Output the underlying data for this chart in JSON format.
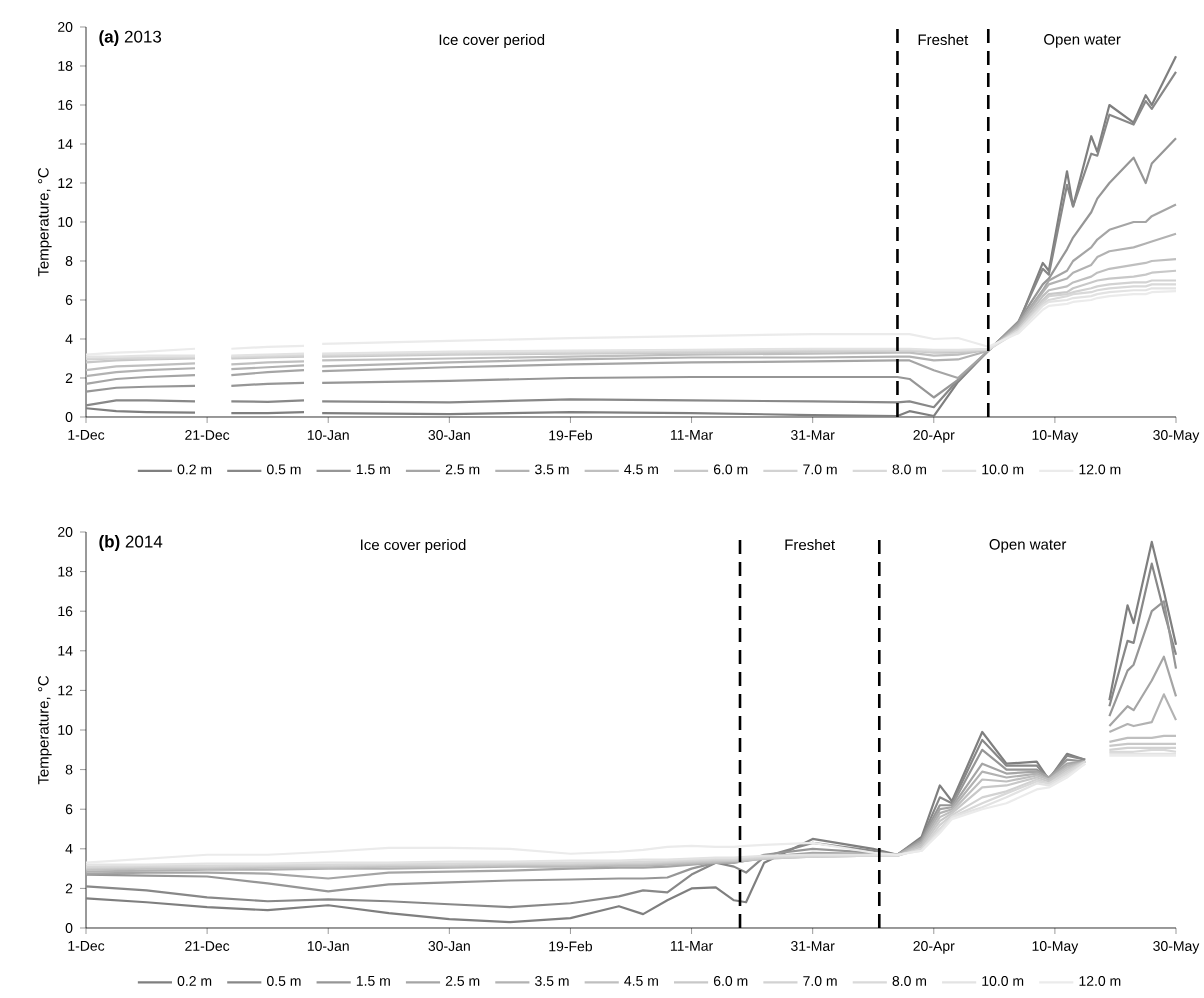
{
  "chart_data": [
    {
      "type": "line",
      "title": "**(a)** 2013",
      "ylabel": "Temperature, °C",
      "legend": "bottom",
      "xlim": [
        "2012-12-01",
        "2013-05-30"
      ],
      "xticks": [
        {
          "value": "2012-12-01",
          "label": "1-Dec"
        },
        {
          "value": "2012-12-21",
          "label": "21-Dec"
        },
        {
          "value": "2013-01-10",
          "label": "10-Jan"
        },
        {
          "value": "2013-01-30",
          "label": "30-Jan"
        },
        {
          "value": "2013-02-19",
          "label": "19-Feb"
        },
        {
          "value": "2013-03-11",
          "label": "11-Mar"
        },
        {
          "value": "2013-03-31",
          "label": "31-Mar"
        },
        {
          "value": "2013-04-20",
          "label": "20-Apr"
        },
        {
          "value": "2013-05-10",
          "label": "10-May"
        },
        {
          "value": "2013-05-30",
          "label": "30-May"
        }
      ],
      "ylim": [
        0,
        20
      ],
      "yticks": [
        0,
        2,
        4,
        6,
        8,
        10,
        12,
        14,
        16,
        18,
        20
      ],
      "x": [
        "2012-12-01",
        "2012-12-06",
        "2012-12-11",
        "2012-12-19",
        "2012-12-22",
        "2012-12-25",
        "2012-12-31",
        "2013-01-06",
        "2013-01-08",
        "2013-01-09",
        "2013-01-30",
        "2013-02-19",
        "2013-03-11",
        "2013-03-31",
        "2013-04-14",
        "2013-04-16",
        "2013-04-20",
        "2013-04-24",
        "2013-04-29",
        "2013-05-04",
        "2013-05-08",
        "2013-05-09",
        "2013-05-12",
        "2013-05-13",
        "2013-05-16",
        "2013-05-17",
        "2013-05-19",
        "2013-05-23",
        "2013-05-25",
        "2013-05-26",
        "2013-05-30"
      ],
      "series": [
        {
          "name": "0.2 m",
          "color": "#7f7f7f",
          "values": [
            0.45,
            0.3,
            0.25,
            0.22,
            null,
            0.2,
            0.2,
            0.25,
            null,
            0.2,
            0.15,
            0.25,
            0.2,
            0.1,
            0.05,
            0.3,
            0.05,
            1.8,
            3.4,
            4.8,
            7.9,
            7.5,
            12.6,
            10.8,
            14.4,
            13.6,
            16.0,
            15.1,
            16.5,
            16.0,
            18.5
          ]
        },
        {
          "name": "0.5 m",
          "color": "#888888",
          "values": [
            0.6,
            0.85,
            0.85,
            0.8,
            null,
            0.8,
            0.78,
            0.85,
            null,
            0.8,
            0.75,
            0.9,
            0.85,
            0.8,
            0.75,
            0.8,
            0.5,
            1.9,
            3.4,
            4.9,
            7.6,
            7.3,
            11.9,
            10.8,
            13.5,
            13.4,
            15.5,
            15.0,
            16.2,
            15.8,
            17.7
          ]
        },
        {
          "name": "1.5 m",
          "color": "#969696",
          "values": [
            1.3,
            1.5,
            1.55,
            1.6,
            null,
            1.6,
            1.7,
            1.75,
            null,
            1.75,
            1.85,
            2.0,
            2.05,
            2.05,
            2.05,
            1.95,
            1.0,
            1.9,
            3.4,
            4.9,
            6.8,
            7.1,
            8.6,
            9.2,
            10.5,
            11.2,
            12.0,
            13.3,
            12.0,
            13.0,
            14.3
          ]
        },
        {
          "name": "2.5 m",
          "color": "#a5a5a5",
          "values": [
            1.7,
            1.95,
            2.05,
            2.15,
            null,
            2.15,
            2.3,
            2.4,
            null,
            2.35,
            2.55,
            2.7,
            2.8,
            2.85,
            2.9,
            2.9,
            2.4,
            2.0,
            3.4,
            4.8,
            6.5,
            7.0,
            7.5,
            8.0,
            8.7,
            9.1,
            9.6,
            10.0,
            10.0,
            10.3,
            10.9
          ]
        },
        {
          "name": "3.5 m",
          "color": "#b2b2b2",
          "values": [
            2.1,
            2.3,
            2.4,
            2.5,
            null,
            2.45,
            2.55,
            2.65,
            null,
            2.6,
            2.8,
            2.95,
            3.05,
            3.05,
            3.1,
            3.1,
            2.9,
            2.95,
            3.4,
            4.7,
            6.4,
            6.8,
            7.1,
            7.4,
            7.8,
            8.2,
            8.5,
            8.7,
            8.9,
            9.0,
            9.4
          ]
        },
        {
          "name": "4.5 m",
          "color": "#bfbfbf",
          "values": [
            2.4,
            2.6,
            2.65,
            2.75,
            null,
            2.7,
            2.8,
            2.85,
            null,
            2.9,
            3.0,
            3.1,
            3.2,
            3.25,
            3.3,
            3.3,
            3.15,
            3.2,
            3.45,
            4.6,
            6.2,
            6.5,
            6.7,
            6.9,
            7.2,
            7.4,
            7.6,
            7.8,
            7.9,
            8.0,
            8.1
          ]
        },
        {
          "name": "6.0 m",
          "color": "#c8c8c8",
          "values": [
            2.8,
            2.9,
            2.95,
            3.0,
            null,
            3.0,
            3.05,
            3.1,
            null,
            3.1,
            3.2,
            3.25,
            3.3,
            3.35,
            3.4,
            3.4,
            3.3,
            3.3,
            3.45,
            4.5,
            6.0,
            6.3,
            6.4,
            6.6,
            6.9,
            7.0,
            7.1,
            7.2,
            7.3,
            7.4,
            7.5
          ]
        },
        {
          "name": "7.0 m",
          "color": "#d2d2d2",
          "values": [
            2.95,
            3.0,
            3.0,
            3.05,
            null,
            3.05,
            3.1,
            3.15,
            null,
            3.15,
            3.25,
            3.3,
            3.35,
            3.4,
            3.4,
            3.4,
            3.35,
            3.4,
            3.45,
            4.5,
            5.9,
            6.2,
            6.3,
            6.4,
            6.6,
            6.7,
            6.8,
            6.9,
            6.9,
            7.0,
            7.0
          ]
        },
        {
          "name": "8.0 m",
          "color": "#d9d9d9",
          "values": [
            3.0,
            3.05,
            3.05,
            3.1,
            null,
            3.1,
            3.15,
            3.2,
            null,
            3.2,
            3.3,
            3.35,
            3.4,
            3.45,
            3.45,
            3.45,
            3.4,
            3.4,
            3.45,
            4.4,
            5.8,
            6.0,
            6.2,
            6.3,
            6.4,
            6.5,
            6.6,
            6.7,
            6.7,
            6.8,
            6.8
          ]
        },
        {
          "name": "10.0 m",
          "color": "#e3e3e3",
          "values": [
            3.1,
            3.1,
            3.15,
            3.15,
            null,
            3.15,
            3.2,
            3.25,
            null,
            3.25,
            3.35,
            3.4,
            3.45,
            3.5,
            3.5,
            3.5,
            3.45,
            3.45,
            3.5,
            4.4,
            5.7,
            5.9,
            6.0,
            6.1,
            6.2,
            6.3,
            6.4,
            6.5,
            6.5,
            6.6,
            6.6
          ]
        },
        {
          "name": "12.0 m",
          "color": "#ebebeb",
          "values": [
            3.2,
            3.3,
            3.35,
            3.5,
            null,
            3.5,
            3.6,
            3.65,
            null,
            3.75,
            3.9,
            4.05,
            4.15,
            4.25,
            4.25,
            4.25,
            4.0,
            4.05,
            3.6,
            4.3,
            5.5,
            5.7,
            5.8,
            5.9,
            6.0,
            6.1,
            6.2,
            6.3,
            6.3,
            6.4,
            6.45
          ]
        }
      ],
      "ref_lines": [
        {
          "axis": "x",
          "value": "2013-04-14",
          "color": "#000000",
          "line_style": "dashed"
        },
        {
          "axis": "x",
          "value": "2013-04-29",
          "color": "#000000",
          "line_style": "dashed"
        }
      ],
      "annotations": [
        "Ice cover period",
        "Freshet",
        "Open water"
      ]
    },
    {
      "type": "line",
      "title": "**(b)** 2014",
      "ylabel": "Temperature, °C",
      "legend": "bottom",
      "xlim": [
        "2013-12-01",
        "2014-05-30"
      ],
      "xticks": [
        {
          "value": "2013-12-01",
          "label": "1-Dec"
        },
        {
          "value": "2013-12-21",
          "label": "21-Dec"
        },
        {
          "value": "2014-01-10",
          "label": "10-Jan"
        },
        {
          "value": "2014-01-30",
          "label": "30-Jan"
        },
        {
          "value": "2014-02-19",
          "label": "19-Feb"
        },
        {
          "value": "2014-03-11",
          "label": "11-Mar"
        },
        {
          "value": "2014-03-31",
          "label": "31-Mar"
        },
        {
          "value": "2014-04-20",
          "label": "20-Apr"
        },
        {
          "value": "2014-05-10",
          "label": "10-May"
        },
        {
          "value": "2014-05-30",
          "label": "30-May"
        }
      ],
      "ylim": [
        0,
        20
      ],
      "yticks": [
        0,
        2,
        4,
        6,
        8,
        10,
        12,
        14,
        16,
        18,
        20
      ],
      "x": [
        "2013-12-01",
        "2013-12-11",
        "2013-12-21",
        "2013-12-31",
        "2014-01-10",
        "2014-01-20",
        "2014-01-30",
        "2014-02-09",
        "2014-02-19",
        "2014-02-27",
        "2014-03-03",
        "2014-03-07",
        "2014-03-11",
        "2014-03-15",
        "2014-03-18",
        "2014-03-20",
        "2014-03-23",
        "2014-03-31",
        "2014-04-10",
        "2014-04-14",
        "2014-04-18",
        "2014-04-21",
        "2014-04-23",
        "2014-04-28",
        "2014-05-02",
        "2014-05-07",
        "2014-05-09",
        "2014-05-12",
        "2014-05-15",
        "2014-05-17",
        "2014-05-19",
        "2014-05-22",
        "2014-05-23",
        "2014-05-26",
        "2014-05-28",
        "2014-05-30"
      ],
      "series": [
        {
          "name": "0.2 m",
          "color": "#7f7f7f",
          "values": [
            1.5,
            1.3,
            1.05,
            0.9,
            1.15,
            0.75,
            0.45,
            0.3,
            0.5,
            1.1,
            0.7,
            1.4,
            2.0,
            2.05,
            1.4,
            1.3,
            3.3,
            4.5,
            4.0,
            3.7,
            4.6,
            7.2,
            6.4,
            9.9,
            8.3,
            8.4,
            7.5,
            8.8,
            8.5,
            null,
            11.5,
            16.3,
            15.4,
            19.5,
            17.0,
            14.3
          ]
        },
        {
          "name": "0.5 m",
          "color": "#888888",
          "values": [
            2.1,
            1.9,
            1.55,
            1.35,
            1.45,
            1.35,
            1.2,
            1.05,
            1.25,
            1.6,
            1.9,
            1.8,
            2.7,
            3.3,
            3.1,
            2.8,
            3.6,
            4.3,
            3.9,
            3.7,
            4.5,
            6.6,
            6.3,
            9.5,
            8.2,
            8.2,
            7.5,
            8.7,
            8.5,
            null,
            11.2,
            14.5,
            14.4,
            18.4,
            16.0,
            13.8
          ]
        },
        {
          "name": "1.5 m",
          "color": "#969696",
          "values": [
            2.7,
            2.65,
            2.6,
            2.25,
            1.85,
            2.2,
            2.3,
            2.4,
            2.45,
            2.5,
            2.5,
            2.55,
            3.0,
            3.3,
            3.3,
            3.4,
            3.7,
            4.0,
            3.8,
            3.7,
            4.5,
            6.2,
            6.2,
            9.0,
            8.0,
            8.0,
            7.6,
            8.5,
            8.4,
            null,
            10.7,
            13.0,
            13.3,
            16.0,
            16.5,
            13.1
          ]
        },
        {
          "name": "2.5 m",
          "color": "#a5a5a5",
          "values": [
            2.75,
            2.8,
            2.8,
            2.75,
            2.5,
            2.8,
            2.85,
            2.9,
            3.0,
            3.05,
            3.05,
            3.1,
            3.2,
            3.3,
            3.3,
            3.4,
            3.6,
            3.8,
            3.75,
            3.7,
            4.4,
            6.0,
            6.1,
            8.3,
            7.8,
            7.9,
            7.6,
            8.3,
            8.4,
            null,
            10.2,
            11.2,
            11.0,
            12.5,
            13.7,
            11.7
          ]
        },
        {
          "name": "3.5 m",
          "color": "#b2b2b2",
          "values": [
            2.85,
            2.9,
            2.95,
            2.95,
            3.0,
            3.0,
            3.05,
            3.1,
            3.1,
            3.15,
            3.15,
            3.2,
            3.25,
            3.3,
            3.35,
            3.4,
            3.5,
            3.7,
            3.7,
            3.7,
            4.3,
            5.8,
            6.0,
            7.9,
            7.6,
            7.8,
            7.5,
            8.2,
            8.4,
            null,
            9.9,
            10.3,
            10.2,
            10.4,
            11.8,
            10.5
          ]
        },
        {
          "name": "4.5 m",
          "color": "#bfbfbf",
          "values": [
            2.95,
            3.0,
            3.0,
            3.05,
            3.05,
            3.1,
            3.1,
            3.15,
            3.15,
            3.2,
            3.2,
            3.25,
            3.3,
            3.35,
            3.4,
            3.4,
            3.5,
            3.6,
            3.65,
            3.65,
            4.2,
            5.6,
            5.9,
            7.5,
            7.4,
            7.7,
            7.5,
            8.1,
            8.4,
            null,
            9.4,
            9.6,
            9.6,
            9.6,
            9.7,
            9.7
          ]
        },
        {
          "name": "6.0 m",
          "color": "#c8c8c8",
          "values": [
            3.0,
            3.05,
            3.05,
            3.1,
            3.1,
            3.15,
            3.15,
            3.2,
            3.2,
            3.25,
            3.25,
            3.3,
            3.35,
            3.4,
            3.4,
            3.45,
            3.5,
            3.6,
            3.65,
            3.65,
            4.1,
            5.4,
            5.8,
            7.1,
            7.2,
            7.6,
            7.4,
            8.0,
            8.4,
            null,
            9.2,
            9.3,
            9.3,
            9.3,
            9.3,
            9.3
          ]
        },
        {
          "name": "7.0 m",
          "color": "#d2d2d2",
          "values": [
            3.05,
            3.1,
            3.1,
            3.15,
            3.15,
            3.2,
            3.2,
            3.25,
            3.25,
            3.3,
            3.3,
            3.35,
            3.4,
            3.45,
            3.45,
            3.5,
            3.55,
            3.6,
            3.65,
            3.65,
            4.0,
            5.2,
            5.7,
            6.6,
            6.9,
            7.5,
            7.3,
            7.9,
            8.4,
            null,
            9.0,
            9.1,
            9.1,
            9.1,
            9.1,
            9.1
          ]
        },
        {
          "name": "8.0 m",
          "color": "#d9d9d9",
          "values": [
            3.1,
            3.15,
            3.15,
            3.2,
            3.2,
            3.25,
            3.25,
            3.3,
            3.3,
            3.35,
            3.35,
            3.4,
            3.45,
            3.5,
            3.5,
            3.55,
            3.6,
            3.65,
            3.65,
            3.65,
            4.0,
            5.0,
            5.6,
            6.3,
            6.8,
            7.4,
            7.3,
            7.8,
            8.4,
            null,
            8.9,
            8.9,
            8.9,
            9.0,
            9.0,
            8.9
          ]
        },
        {
          "name": "10.0 m",
          "color": "#e3e3e3",
          "values": [
            3.2,
            3.2,
            3.25,
            3.25,
            3.3,
            3.3,
            3.35,
            3.35,
            3.4,
            3.4,
            3.45,
            3.45,
            3.5,
            3.55,
            3.55,
            3.6,
            3.65,
            3.7,
            3.7,
            3.7,
            3.9,
            4.9,
            5.6,
            6.1,
            6.6,
            7.3,
            7.2,
            7.7,
            8.3,
            null,
            8.8,
            8.8,
            8.8,
            8.8,
            8.8,
            8.8
          ]
        },
        {
          "name": "12.0 m",
          "color": "#ebebeb",
          "values": [
            3.3,
            3.5,
            3.7,
            3.7,
            3.85,
            4.05,
            4.05,
            4.0,
            3.75,
            3.85,
            3.95,
            4.1,
            4.15,
            4.1,
            4.1,
            4.15,
            4.2,
            4.3,
            3.8,
            3.7,
            3.9,
            4.8,
            5.5,
            6.0,
            6.3,
            7.0,
            7.1,
            7.6,
            8.3,
            null,
            8.7,
            8.7,
            8.7,
            8.7,
            8.7,
            8.7
          ]
        }
      ],
      "ref_lines": [
        {
          "axis": "x",
          "value": "2014-03-19",
          "color": "#000000",
          "line_style": "dashed"
        },
        {
          "axis": "x",
          "value": "2014-04-11",
          "color": "#000000",
          "line_style": "dashed"
        }
      ],
      "annotations": [
        "Ice cover period",
        "Freshet",
        "Open water"
      ]
    }
  ]
}
